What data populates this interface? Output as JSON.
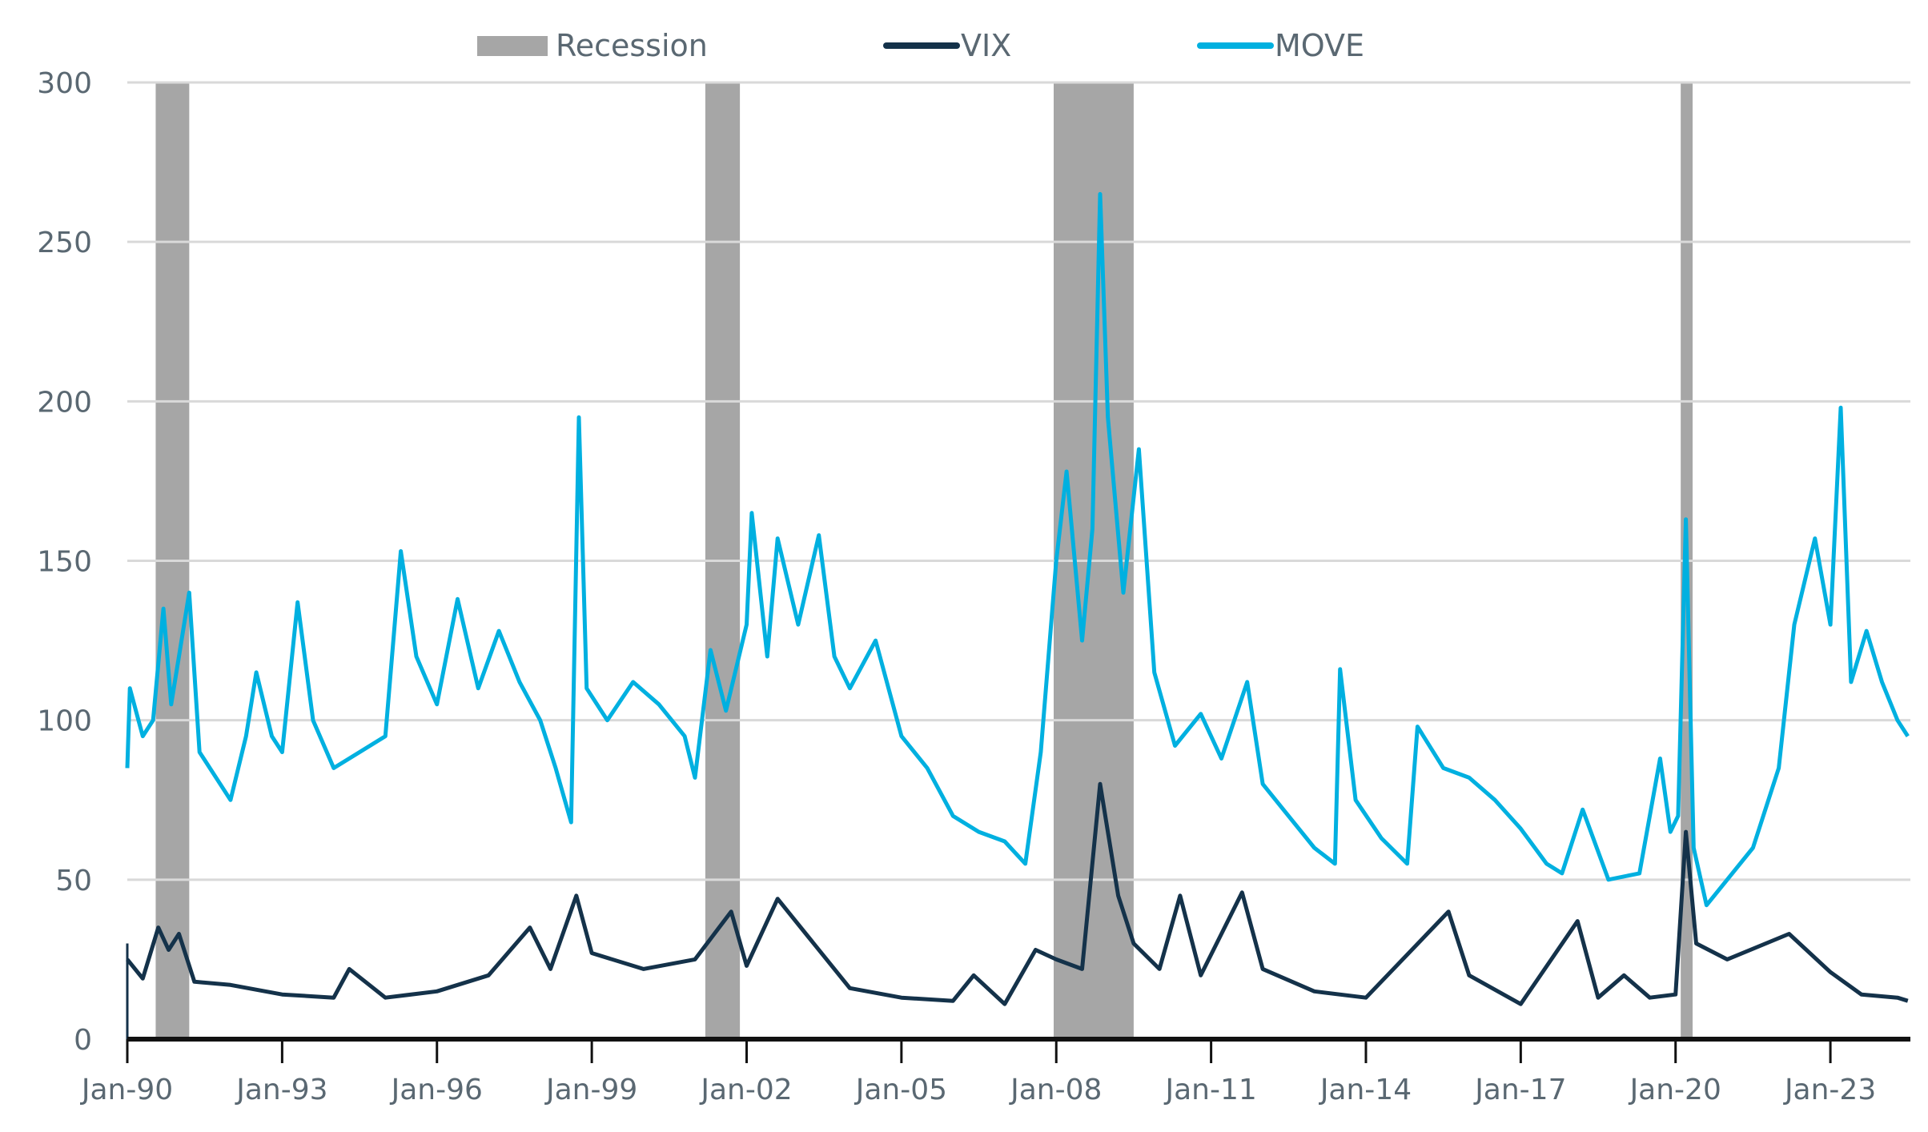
{
  "chart_data": {
    "type": "line",
    "title": "",
    "xlabel": "",
    "ylabel": "",
    "ylim": [
      0,
      300
    ],
    "xlim": [
      1990.0,
      2024.55
    ],
    "yticks": [
      0,
      50,
      100,
      150,
      200,
      250,
      300
    ],
    "xticks": [
      {
        "label": "Jan-90",
        "x": 1990
      },
      {
        "label": "Jan-93",
        "x": 1993
      },
      {
        "label": "Jan-96",
        "x": 1996
      },
      {
        "label": "Jan-99",
        "x": 1999
      },
      {
        "label": "Jan-02",
        "x": 2002
      },
      {
        "label": "Jan-05",
        "x": 2005
      },
      {
        "label": "Jan-08",
        "x": 2008
      },
      {
        "label": "Jan-11",
        "x": 2011
      },
      {
        "label": "Jan-14",
        "x": 2014
      },
      {
        "label": "Jan-17",
        "x": 2017
      },
      {
        "label": "Jan-20",
        "x": 2020
      },
      {
        "label": "Jan-23",
        "x": 2023
      }
    ],
    "grid": true,
    "legend_position": "top-center",
    "legend": [
      {
        "name": "Recession",
        "kind": "area",
        "color": "#A6A6A6"
      },
      {
        "name": "VIX",
        "kind": "line",
        "color": "#14324A"
      },
      {
        "name": "MOVE",
        "kind": "line",
        "color": "#00B0E0"
      }
    ],
    "recessions": [
      [
        1990.55,
        1991.2
      ],
      [
        2001.2,
        2001.87
      ],
      [
        2007.95,
        2009.5
      ],
      [
        2020.1,
        2020.33
      ]
    ],
    "series": [
      {
        "name": "MOVE",
        "color": "#00B0E0",
        "points": [
          [
            1990.0,
            85
          ],
          [
            1990.05,
            110
          ],
          [
            1990.3,
            95
          ],
          [
            1990.5,
            100
          ],
          [
            1990.7,
            135
          ],
          [
            1990.85,
            105
          ],
          [
            1991.0,
            120
          ],
          [
            1991.2,
            140
          ],
          [
            1991.4,
            90
          ],
          [
            1991.8,
            80
          ],
          [
            1992.0,
            75
          ],
          [
            1992.3,
            95
          ],
          [
            1992.5,
            115
          ],
          [
            1992.8,
            95
          ],
          [
            1993.0,
            90
          ],
          [
            1993.3,
            137
          ],
          [
            1993.6,
            100
          ],
          [
            1994.0,
            85
          ],
          [
            1994.5,
            90
          ],
          [
            1995.0,
            95
          ],
          [
            1995.3,
            153
          ],
          [
            1995.6,
            120
          ],
          [
            1996.0,
            105
          ],
          [
            1996.4,
            138
          ],
          [
            1996.8,
            110
          ],
          [
            1997.2,
            128
          ],
          [
            1997.6,
            112
          ],
          [
            1998.0,
            100
          ],
          [
            1998.3,
            85
          ],
          [
            1998.6,
            68
          ],
          [
            1998.75,
            195
          ],
          [
            1998.9,
            110
          ],
          [
            1999.3,
            100
          ],
          [
            1999.8,
            112
          ],
          [
            2000.3,
            105
          ],
          [
            2000.8,
            95
          ],
          [
            2001.0,
            82
          ],
          [
            2001.3,
            122
          ],
          [
            2001.6,
            103
          ],
          [
            2002.0,
            130
          ],
          [
            2002.1,
            165
          ],
          [
            2002.4,
            120
          ],
          [
            2002.6,
            157
          ],
          [
            2003.0,
            130
          ],
          [
            2003.4,
            158
          ],
          [
            2003.7,
            120
          ],
          [
            2004.0,
            110
          ],
          [
            2004.5,
            125
          ],
          [
            2005.0,
            95
          ],
          [
            2005.5,
            85
          ],
          [
            2006.0,
            70
          ],
          [
            2006.5,
            65
          ],
          [
            2007.0,
            62
          ],
          [
            2007.4,
            55
          ],
          [
            2007.7,
            90
          ],
          [
            2008.0,
            150
          ],
          [
            2008.2,
            178
          ],
          [
            2008.5,
            125
          ],
          [
            2008.7,
            160
          ],
          [
            2008.85,
            265
          ],
          [
            2009.0,
            195
          ],
          [
            2009.3,
            140
          ],
          [
            2009.6,
            185
          ],
          [
            2009.9,
            115
          ],
          [
            2010.3,
            92
          ],
          [
            2010.8,
            102
          ],
          [
            2011.2,
            88
          ],
          [
            2011.7,
            112
          ],
          [
            2012.0,
            80
          ],
          [
            2012.5,
            70
          ],
          [
            2013.0,
            60
          ],
          [
            2013.4,
            55
          ],
          [
            2013.5,
            116
          ],
          [
            2013.8,
            75
          ],
          [
            2014.3,
            63
          ],
          [
            2014.8,
            55
          ],
          [
            2015.0,
            98
          ],
          [
            2015.5,
            85
          ],
          [
            2016.0,
            82
          ],
          [
            2016.5,
            75
          ],
          [
            2017.0,
            66
          ],
          [
            2017.5,
            55
          ],
          [
            2017.8,
            52
          ],
          [
            2018.2,
            72
          ],
          [
            2018.7,
            50
          ],
          [
            2019.3,
            52
          ],
          [
            2019.7,
            88
          ],
          [
            2019.9,
            65
          ],
          [
            2020.05,
            70
          ],
          [
            2020.2,
            163
          ],
          [
            2020.35,
            60
          ],
          [
            2020.6,
            42
          ],
          [
            2021.0,
            50
          ],
          [
            2021.5,
            60
          ],
          [
            2022.0,
            85
          ],
          [
            2022.3,
            130
          ],
          [
            2022.7,
            157
          ],
          [
            2023.0,
            130
          ],
          [
            2023.2,
            198
          ],
          [
            2023.4,
            112
          ],
          [
            2023.7,
            128
          ],
          [
            2024.0,
            112
          ],
          [
            2024.3,
            100
          ],
          [
            2024.5,
            95
          ]
        ]
      },
      {
        "name": "VIX",
        "color": "#14324A",
        "points": [
          [
            1990.0,
            25
          ],
          [
            1990.3,
            19
          ],
          [
            1990.6,
            35
          ],
          [
            1990.8,
            28
          ],
          [
            1991.0,
            33
          ],
          [
            1991.3,
            18
          ],
          [
            1992.0,
            17
          ],
          [
            1993.0,
            14
          ],
          [
            1994.0,
            13
          ],
          [
            1994.3,
            22
          ],
          [
            1995.0,
            13
          ],
          [
            1996.0,
            15
          ],
          [
            1997.0,
            20
          ],
          [
            1997.8,
            35
          ],
          [
            1998.2,
            22
          ],
          [
            1998.7,
            45
          ],
          [
            1999.0,
            27
          ],
          [
            2000.0,
            22
          ],
          [
            2001.0,
            25
          ],
          [
            2001.7,
            40
          ],
          [
            2002.0,
            23
          ],
          [
            2002.6,
            44
          ],
          [
            2003.2,
            32
          ],
          [
            2004.0,
            16
          ],
          [
            2005.0,
            13
          ],
          [
            2006.0,
            12
          ],
          [
            2006.4,
            20
          ],
          [
            2007.0,
            11
          ],
          [
            2007.6,
            28
          ],
          [
            2008.0,
            25
          ],
          [
            2008.5,
            22
          ],
          [
            2008.85,
            80
          ],
          [
            2009.2,
            45
          ],
          [
            2009.5,
            30
          ],
          [
            2010.0,
            22
          ],
          [
            2010.4,
            45
          ],
          [
            2010.8,
            20
          ],
          [
            2011.6,
            46
          ],
          [
            2012.0,
            22
          ],
          [
            2013.0,
            15
          ],
          [
            2014.0,
            13
          ],
          [
            2015.6,
            40
          ],
          [
            2016.0,
            20
          ],
          [
            2017.0,
            11
          ],
          [
            2018.1,
            37
          ],
          [
            2018.5,
            13
          ],
          [
            2019.0,
            20
          ],
          [
            2019.5,
            13
          ],
          [
            2020.0,
            14
          ],
          [
            2020.2,
            65
          ],
          [
            2020.4,
            30
          ],
          [
            2021.0,
            25
          ],
          [
            2022.2,
            33
          ],
          [
            2023.0,
            21
          ],
          [
            2023.6,
            14
          ],
          [
            2024.3,
            13
          ],
          [
            2024.5,
            12
          ]
        ]
      }
    ]
  }
}
